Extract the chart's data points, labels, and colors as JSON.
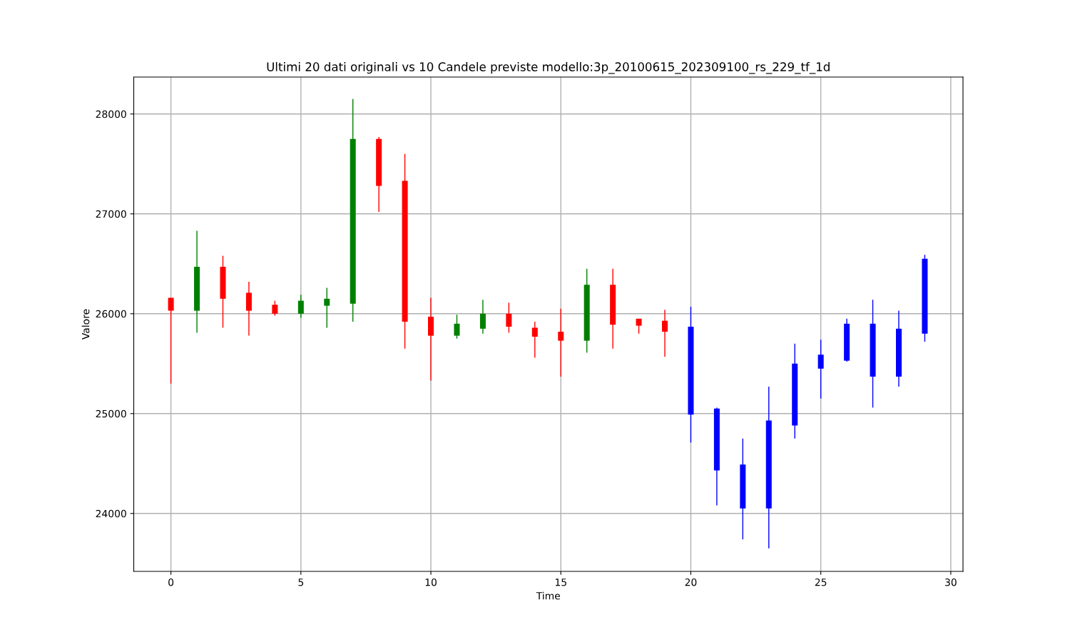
{
  "chart_data": {
    "type": "candlestick",
    "title": "Ultimi 20 dati originali vs 10 Candele previste modello:3p_20100615_202309100_rs_229_tf_1d",
    "xlabel": "Time",
    "ylabel": "Valore",
    "x": [
      0,
      1,
      2,
      3,
      4,
      5,
      6,
      7,
      8,
      9,
      10,
      11,
      12,
      13,
      14,
      15,
      16,
      17,
      18,
      19,
      20,
      21,
      22,
      23,
      24,
      25,
      26,
      27,
      28,
      29
    ],
    "ohlc": [
      [
        26160,
        26160,
        25300,
        26030
      ],
      [
        26030,
        26830,
        25810,
        26470
      ],
      [
        26470,
        26580,
        25860,
        26150
      ],
      [
        26210,
        26320,
        25780,
        26030
      ],
      [
        26090,
        26130,
        25980,
        26000
      ],
      [
        26000,
        26190,
        25960,
        26130
      ],
      [
        26080,
        26260,
        25860,
        26150
      ],
      [
        26100,
        28150,
        25920,
        27750
      ],
      [
        27750,
        27770,
        27020,
        27280
      ],
      [
        27330,
        27600,
        25650,
        25920
      ],
      [
        25970,
        26160,
        25330,
        25780
      ],
      [
        25780,
        25990,
        25750,
        25900
      ],
      [
        25850,
        26140,
        25800,
        26000
      ],
      [
        26000,
        26110,
        25810,
        25870
      ],
      [
        25860,
        25920,
        25560,
        25770
      ],
      [
        25820,
        26050,
        25370,
        25730
      ],
      [
        25730,
        26450,
        25610,
        26290
      ],
      [
        26290,
        26450,
        25650,
        25890
      ],
      [
        25950,
        25950,
        25800,
        25880
      ],
      [
        25930,
        26040,
        25570,
        25820
      ],
      [
        25870,
        26070,
        24710,
        24990
      ],
      [
        25050,
        25060,
        24080,
        24430
      ],
      [
        24490,
        24750,
        23740,
        24050
      ],
      [
        24050,
        25270,
        23650,
        24930
      ],
      [
        24880,
        25700,
        24750,
        25500
      ],
      [
        25450,
        25740,
        25150,
        25590
      ],
      [
        25530,
        25950,
        25520,
        25900
      ],
      [
        25900,
        26140,
        25060,
        25370
      ],
      [
        25370,
        26030,
        25270,
        25850
      ],
      [
        25800,
        26590,
        25720,
        26550
      ]
    ],
    "colors": [
      "#ff0000",
      "#008000",
      "#ff0000",
      "#ff0000",
      "#ff0000",
      "#008000",
      "#008000",
      "#008000",
      "#ff0000",
      "#ff0000",
      "#ff0000",
      "#008000",
      "#008000",
      "#ff0000",
      "#ff0000",
      "#ff0000",
      "#008000",
      "#ff0000",
      "#ff0000",
      "#ff0000",
      "#0000ff",
      "#0000ff",
      "#0000ff",
      "#0000ff",
      "#0000ff",
      "#0000ff",
      "#0000ff",
      "#0000ff",
      "#0000ff",
      "#0000ff"
    ],
    "xlim": [
      -1.43,
      30.47
    ],
    "ylim": [
      23420,
      28370
    ],
    "xticks": [
      0,
      5,
      10,
      15,
      20,
      25,
      30
    ],
    "yticks": [
      24000,
      25000,
      26000,
      27000,
      28000
    ],
    "grid": true
  }
}
